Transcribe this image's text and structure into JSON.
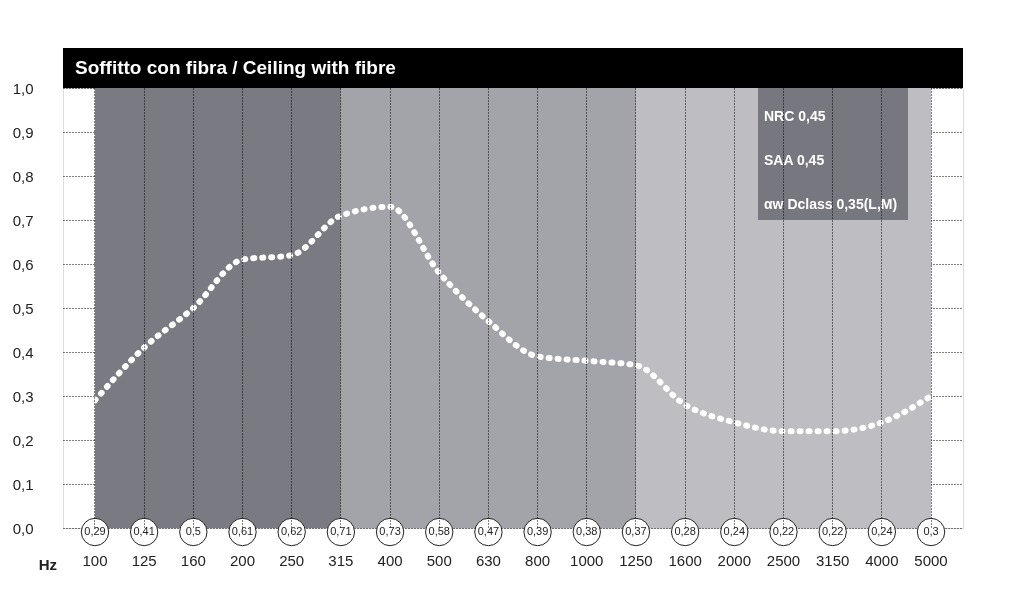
{
  "chart_data": {
    "type": "line",
    "title": "Soffitto con fibra / Ceiling with fibre",
    "xlabel": "Hz",
    "categories": [
      "100",
      "125",
      "160",
      "200",
      "250",
      "315",
      "400",
      "500",
      "630",
      "800",
      "1000",
      "1250",
      "1600",
      "2000",
      "2500",
      "3150",
      "4000",
      "5000"
    ],
    "series": [
      {
        "color": "#ffffff",
        "values": [
          0.29,
          0.41,
          0.5,
          0.61,
          0.62,
          0.71,
          0.73,
          0.58,
          0.47,
          0.39,
          0.38,
          0.37,
          0.28,
          0.24,
          0.22,
          0.22,
          0.24,
          0.3
        ]
      }
    ],
    "value_labels": [
      "0,29",
      "0,41",
      "0,5",
      "0,61",
      "0,62",
      "0,71",
      "0,73",
      "0,58",
      "0,47",
      "0,39",
      "0,38",
      "0,37",
      "0,28",
      "0,24",
      "0,22",
      "0,22",
      "0,24",
      "0,3"
    ],
    "ylim": [
      0,
      1
    ],
    "yticks": [
      {
        "value": 0,
        "label": "0,0"
      },
      {
        "value": 0.1,
        "label": "0,1"
      },
      {
        "value": 0.2,
        "label": "0,2"
      },
      {
        "value": 0.3,
        "label": "0,3"
      },
      {
        "value": 0.4,
        "label": "0,4"
      },
      {
        "value": 0.5,
        "label": "0,5"
      },
      {
        "value": 0.6,
        "label": "0,6"
      },
      {
        "value": 0.7,
        "label": "0,7"
      },
      {
        "value": 0.8,
        "label": "0,8"
      },
      {
        "value": 0.9,
        "label": "0,9"
      },
      {
        "value": 1,
        "label": "1,0"
      }
    ],
    "bands": [
      {
        "axis": "x",
        "from": "100",
        "to": "315",
        "color": "#7a7a82"
      },
      {
        "axis": "x",
        "from": "315",
        "to": "1250",
        "color": "#a3a3aa"
      },
      {
        "axis": "x",
        "from": "1250",
        "to": "5000",
        "color": "#bdbdc2"
      }
    ],
    "annotations": [
      "NRC 0,45",
      "SAA 0,45",
      "αw Dclass 0,35(L,M)"
    ],
    "grid": true,
    "line_style": "dotted",
    "marker": "none"
  }
}
